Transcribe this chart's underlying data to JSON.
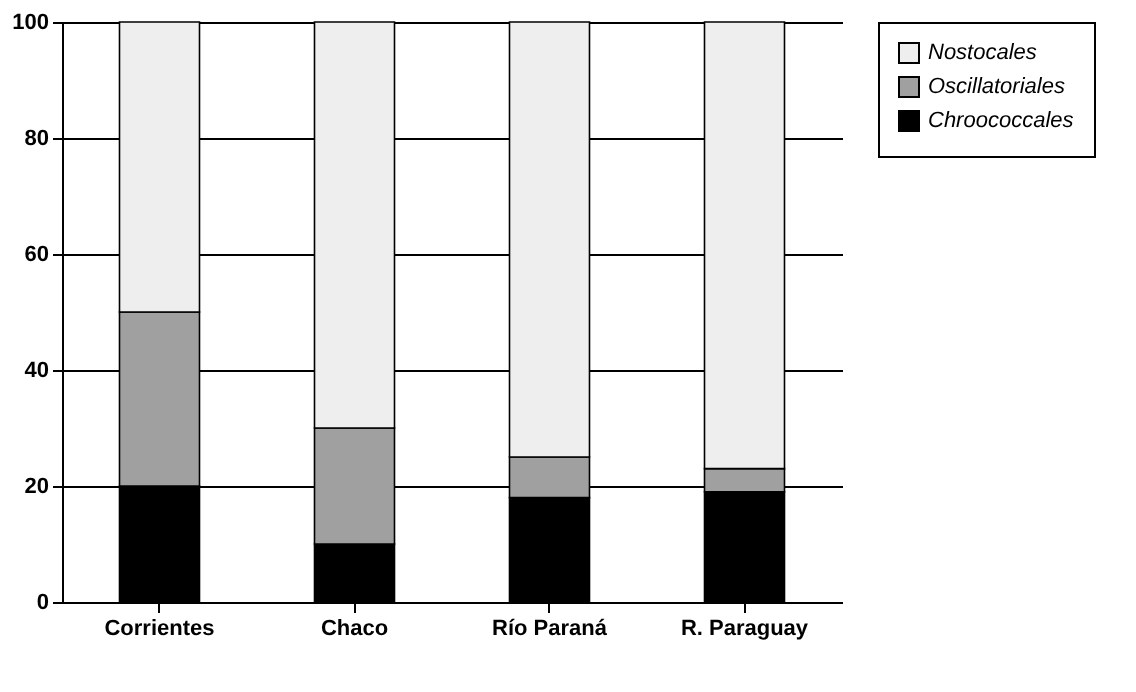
{
  "chart_data": {
    "type": "bar",
    "stacked": true,
    "categories": [
      "Corrientes",
      "Chaco",
      "Río Paraná",
      "R. Paraguay"
    ],
    "series": [
      {
        "name": "Chroococcales",
        "color": "#000000",
        "values": [
          20,
          10,
          18,
          19
        ]
      },
      {
        "name": "Oscillatoriales",
        "color": "#a0a0a0",
        "values": [
          30,
          20,
          7,
          4
        ]
      },
      {
        "name": "Nostocales",
        "color": "#eeeeee",
        "values": [
          50,
          70,
          75,
          77
        ]
      }
    ],
    "ylim": [
      0,
      100
    ],
    "yticks": [
      0,
      20,
      40,
      60,
      80,
      100
    ],
    "grid": "y",
    "legend": "right"
  }
}
